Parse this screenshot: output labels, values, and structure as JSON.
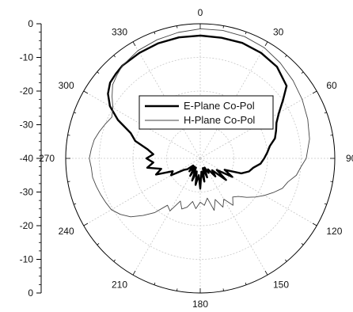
{
  "chart_data": {
    "type": "line",
    "coordinate_system": "polar",
    "angle_unit": "degrees",
    "angle_direction": "clockwise",
    "zero_angle": "top",
    "radial_range_db": [
      -40,
      0
    ],
    "radial_axis_ticks": [
      "0",
      "-10",
      "-20",
      "-30",
      "-40",
      "-30",
      "-20",
      "-10",
      "0"
    ],
    "radial_axis_values": [
      0,
      -10,
      -20,
      -30,
      -40,
      -30,
      -20,
      -10,
      0
    ],
    "angle_tick_labels": [
      "0",
      "30",
      "60",
      "90",
      "120",
      "150",
      "180",
      "210",
      "240",
      "270",
      "300",
      "330"
    ],
    "angle_ticks": [
      0,
      30,
      60,
      90,
      120,
      150,
      180,
      210,
      240,
      270,
      300,
      330
    ],
    "grid": true,
    "legend_position": "center",
    "series": [
      {
        "name": "E-Plane Co-Pol",
        "color": "#000000",
        "style": "thick",
        "points": [
          [
            0,
            -3.5
          ],
          [
            10,
            -3.6
          ],
          [
            20,
            -3.5
          ],
          [
            30,
            -3.8
          ],
          [
            40,
            -4.5
          ],
          [
            50,
            -6.5
          ],
          [
            55,
            -10
          ],
          [
            60,
            -13
          ],
          [
            65,
            -15
          ],
          [
            70,
            -16
          ],
          [
            75,
            -17
          ],
          [
            80,
            -19
          ],
          [
            85,
            -20
          ],
          [
            90,
            -21
          ],
          [
            95,
            -22
          ],
          [
            100,
            -24
          ],
          [
            105,
            -25
          ],
          [
            110,
            -27
          ],
          [
            115,
            -32
          ],
          [
            120,
            -29
          ],
          [
            125,
            -34
          ],
          [
            130,
            -30
          ],
          [
            135,
            -35
          ],
          [
            140,
            -33
          ],
          [
            145,
            -36
          ],
          [
            150,
            -35
          ],
          [
            155,
            -37
          ],
          [
            160,
            -34
          ],
          [
            165,
            -37
          ],
          [
            170,
            -33
          ],
          [
            175,
            -36
          ],
          [
            180,
            -31
          ],
          [
            185,
            -35
          ],
          [
            190,
            -32
          ],
          [
            195,
            -36
          ],
          [
            200,
            -33
          ],
          [
            205,
            -37
          ],
          [
            210,
            -34
          ],
          [
            215,
            -37
          ],
          [
            220,
            -35
          ],
          [
            225,
            -37
          ],
          [
            230,
            -35
          ],
          [
            235,
            -34
          ],
          [
            240,
            -30
          ],
          [
            245,
            -31
          ],
          [
            250,
            -26
          ],
          [
            255,
            -28
          ],
          [
            260,
            -24
          ],
          [
            265,
            -26
          ],
          [
            270,
            -24
          ],
          [
            275,
            -26
          ],
          [
            280,
            -24
          ],
          [
            285,
            -20
          ],
          [
            290,
            -18
          ],
          [
            295,
            -13
          ],
          [
            300,
            -9
          ],
          [
            305,
            -6.5
          ],
          [
            310,
            -5
          ],
          [
            315,
            -4.5
          ],
          [
            320,
            -4
          ],
          [
            330,
            -3.8
          ],
          [
            340,
            -3.6
          ],
          [
            350,
            -3.5
          ],
          [
            360,
            -3.5
          ]
        ]
      },
      {
        "name": "H-Plane Co-Pol",
        "color": "#000000",
        "style": "thin",
        "points": [
          [
            0,
            -1.5
          ],
          [
            10,
            -1.4
          ],
          [
            20,
            -1.5
          ],
          [
            30,
            -2
          ],
          [
            40,
            -3
          ],
          [
            50,
            -4
          ],
          [
            60,
            -5
          ],
          [
            70,
            -6
          ],
          [
            80,
            -7
          ],
          [
            90,
            -8.5
          ],
          [
            95,
            -10
          ],
          [
            100,
            -11
          ],
          [
            105,
            -13
          ],
          [
            110,
            -14
          ],
          [
            115,
            -16
          ],
          [
            120,
            -18
          ],
          [
            125,
            -20
          ],
          [
            130,
            -22
          ],
          [
            135,
            -24
          ],
          [
            140,
            -25
          ],
          [
            145,
            -23
          ],
          [
            150,
            -26
          ],
          [
            155,
            -24
          ],
          [
            160,
            -27
          ],
          [
            165,
            -24
          ],
          [
            170,
            -28
          ],
          [
            175,
            -26
          ],
          [
            180,
            -27
          ],
          [
            185,
            -25
          ],
          [
            190,
            -27
          ],
          [
            195,
            -25
          ],
          [
            200,
            -24
          ],
          [
            205,
            -26
          ],
          [
            210,
            -22
          ],
          [
            215,
            -23
          ],
          [
            220,
            -19
          ],
          [
            225,
            -16
          ],
          [
            230,
            -13
          ],
          [
            235,
            -11
          ],
          [
            240,
            -9.5
          ],
          [
            245,
            -9
          ],
          [
            250,
            -8.5
          ],
          [
            255,
            -8
          ],
          [
            260,
            -7.5
          ],
          [
            265,
            -7.5
          ],
          [
            270,
            -7
          ],
          [
            275,
            -7.5
          ],
          [
            280,
            -8
          ],
          [
            285,
            -9
          ],
          [
            290,
            -10
          ],
          [
            295,
            -11
          ],
          [
            300,
            -10
          ],
          [
            305,
            -8
          ],
          [
            310,
            -6
          ],
          [
            315,
            -5
          ],
          [
            320,
            -4
          ],
          [
            330,
            -3
          ],
          [
            340,
            -2.5
          ],
          [
            350,
            -2
          ],
          [
            360,
            -1.5
          ]
        ]
      }
    ]
  }
}
